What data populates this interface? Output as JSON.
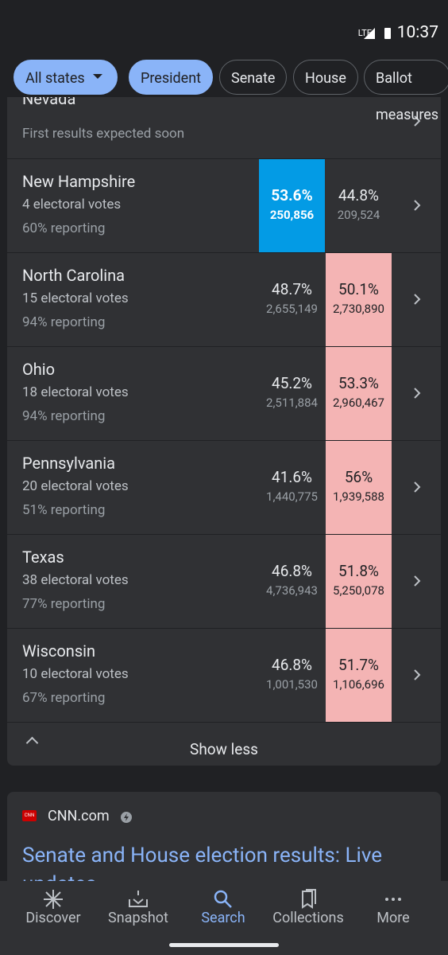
{
  "status_bar": {
    "network": "LTE",
    "time": "10:37"
  },
  "filters": {
    "items": [
      "All states",
      "President",
      "Senate",
      "House",
      "Ballot measures"
    ],
    "selected": [
      0,
      1
    ]
  },
  "results": [
    {
      "state": "Nevada",
      "note": "First results expected soon"
    },
    {
      "state": "New Hampshire",
      "electoral_votes": "4 electoral votes",
      "reporting": "60% reporting",
      "dem_pct": "53.6%",
      "dem_votes": "250,856",
      "rep_pct": "44.8%",
      "rep_votes": "209,524",
      "leading": "dem"
    },
    {
      "state": "North Carolina",
      "electoral_votes": "15 electoral votes",
      "reporting": "94% reporting",
      "dem_pct": "48.7%",
      "dem_votes": "2,655,149",
      "rep_pct": "50.1%",
      "rep_votes": "2,730,890",
      "leading": "rep"
    },
    {
      "state": "Ohio",
      "electoral_votes": "18 electoral votes",
      "reporting": "94% reporting",
      "dem_pct": "45.2%",
      "dem_votes": "2,511,884",
      "rep_pct": "53.3%",
      "rep_votes": "2,960,467",
      "leading": "rep"
    },
    {
      "state": "Pennsylvania",
      "electoral_votes": "20 electoral votes",
      "reporting": "51% reporting",
      "dem_pct": "41.6%",
      "dem_votes": "1,440,775",
      "rep_pct": "56%",
      "rep_votes": "1,939,588",
      "leading": "rep"
    },
    {
      "state": "Texas",
      "electoral_votes": "38 electoral votes",
      "reporting": "77% reporting",
      "dem_pct": "46.8%",
      "dem_votes": "4,736,943",
      "rep_pct": "51.8%",
      "rep_votes": "5,250,078",
      "leading": "rep"
    },
    {
      "state": "Wisconsin",
      "electoral_votes": "10 electoral votes",
      "reporting": "67% reporting",
      "dem_pct": "46.8%",
      "dem_votes": "1,001,530",
      "rep_pct": "51.7%",
      "rep_votes": "1,106,696",
      "leading": "rep"
    }
  ],
  "toggle": "Show less",
  "article": {
    "source": "CNN.com",
    "headline": "Senate and House election results: Live updates"
  },
  "nav": {
    "items": [
      "Discover",
      "Snapshot",
      "Search",
      "Collections",
      "More"
    ],
    "active": 2
  }
}
